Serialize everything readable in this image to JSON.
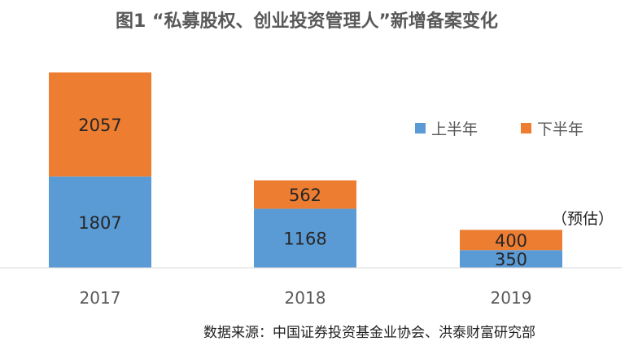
{
  "chart_data": {
    "type": "bar",
    "stacked": true,
    "title": "图1 “私募股权、创业投资管理人”新增备案变化",
    "categories": [
      "2017",
      "2018",
      "2019"
    ],
    "series": [
      {
        "name": "上半年",
        "values": [
          1807,
          1168,
          350
        ],
        "color": "#5B9BD5"
      },
      {
        "name": "下半年",
        "values": [
          2057,
          562,
          400
        ],
        "color": "#ED7D31"
      }
    ],
    "annotation": "（预估）",
    "source": "数据来源：中国证券投资基金业协会、洪泰财富研究部",
    "legend_position": "right",
    "grid": false,
    "ylim": [
      0,
      4050
    ]
  }
}
